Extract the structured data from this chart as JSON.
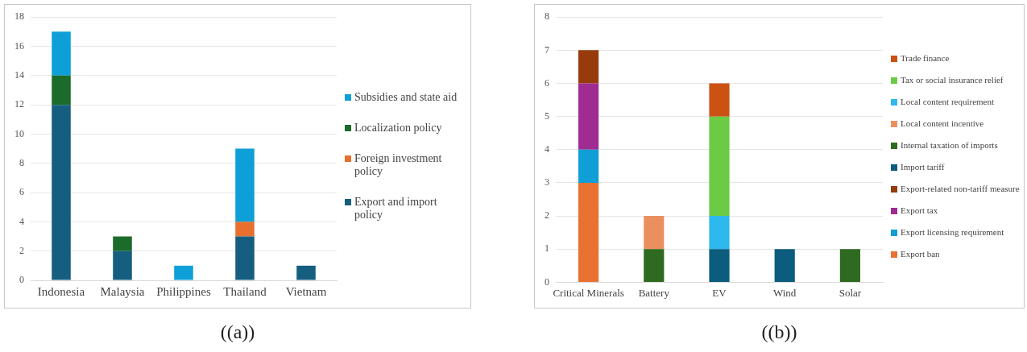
{
  "chart_data": [
    {
      "type": "bar",
      "stacked": true,
      "categories": [
        "Indonesia",
        "Malaysia",
        "Philippines",
        "Thailand",
        "Vietnam"
      ],
      "ylim": [
        0,
        18
      ],
      "yticks": [
        0,
        2,
        4,
        6,
        8,
        10,
        12,
        14,
        16,
        18
      ],
      "grid": "y",
      "legend": "right",
      "annotations": [
        "((a))"
      ],
      "series": [
        {
          "name": "Export and import policy",
          "color": "#165e80",
          "values": [
            12,
            2,
            null,
            3,
            1
          ]
        },
        {
          "name": "Foreign investment policy",
          "color": "#e8702f",
          "values": [
            null,
            null,
            null,
            1,
            null
          ]
        },
        {
          "name": "Localization policy",
          "color": "#1b6b2a",
          "values": [
            2,
            1,
            null,
            null,
            null
          ]
        },
        {
          "name": "Subsidies and state aid",
          "color": "#0f9fd8",
          "values": [
            3,
            null,
            1,
            5,
            null
          ]
        }
      ]
    },
    {
      "type": "bar",
      "stacked": true,
      "categories": [
        "Critical Minerals",
        "Battery",
        "EV",
        "Wind",
        "Solar"
      ],
      "ylim": [
        0,
        8
      ],
      "yticks": [
        0,
        1,
        2,
        3,
        4,
        5,
        6,
        7,
        8
      ],
      "grid": "y",
      "legend": "right",
      "annotations": [
        "((b))"
      ],
      "series": [
        {
          "name": "Export ban",
          "color": "#e97132",
          "values": [
            3,
            null,
            null,
            null,
            null
          ]
        },
        {
          "name": "Export licensing requirement",
          "color": "#0f9ed5",
          "values": [
            1,
            null,
            null,
            null,
            null
          ]
        },
        {
          "name": "Export tax",
          "color": "#a02b93",
          "values": [
            2,
            null,
            null,
            null,
            null
          ]
        },
        {
          "name": "Export-related non-tariff measure",
          "color": "#973b0c",
          "values": [
            1,
            null,
            null,
            null,
            null
          ]
        },
        {
          "name": "Import tariff",
          "color": "#0b5c7d",
          "values": [
            null,
            null,
            1,
            1,
            null
          ]
        },
        {
          "name": "Internal taxation of imports",
          "color": "#2e6a1f",
          "values": [
            null,
            1,
            null,
            null,
            1
          ]
        },
        {
          "name": "Local content incentive",
          "color": "#ec8f5f",
          "values": [
            null,
            1,
            null,
            null,
            null
          ]
        },
        {
          "name": "Local content requirement",
          "color": "#2db8ee",
          "values": [
            null,
            null,
            1,
            null,
            null
          ]
        },
        {
          "name": "Tax or social insurance relief",
          "color": "#6bcb45",
          "values": [
            null,
            null,
            3,
            null,
            null
          ]
        },
        {
          "name": "Trade finance",
          "color": "#cc5213",
          "values": [
            null,
            null,
            1,
            null,
            null
          ]
        }
      ]
    }
  ]
}
